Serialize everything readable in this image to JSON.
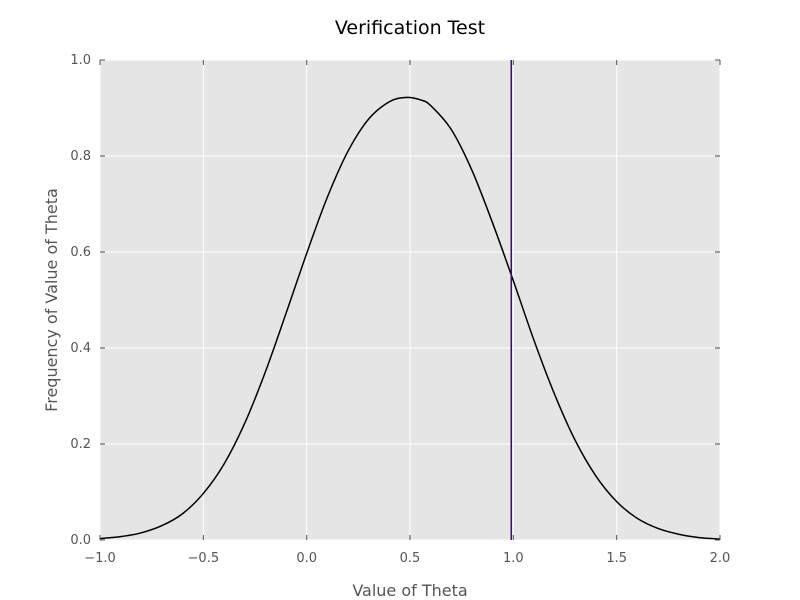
{
  "chart_data": {
    "type": "line",
    "title": "Verification Test",
    "xlabel": "Value of Theta",
    "ylabel": "Frequency of Value of Theta",
    "xlim": [
      -1.0,
      2.0
    ],
    "ylim": [
      0.0,
      1.0
    ],
    "xticks": [
      -1.0,
      -0.5,
      0.0,
      0.5,
      1.0,
      1.5,
      2.0
    ],
    "xtick_labels": [
      "−1.0",
      "−0.5",
      "0.0",
      "0.5",
      "1.0",
      "1.5",
      "2.0"
    ],
    "yticks": [
      0.0,
      0.2,
      0.4,
      0.6,
      0.8,
      1.0
    ],
    "ytick_labels": [
      "0.0",
      "0.2",
      "0.4",
      "0.6",
      "0.8",
      "1.0"
    ],
    "grid": true,
    "series": [
      {
        "style": "curve",
        "color": "#000000",
        "x": [
          -1.0,
          -0.9,
          -0.8,
          -0.7,
          -0.6,
          -0.5,
          -0.4,
          -0.3,
          -0.2,
          -0.1,
          0.0,
          0.1,
          0.2,
          0.3,
          0.4,
          0.48,
          0.55,
          0.6,
          0.7,
          0.8,
          0.9,
          1.0,
          1.1,
          1.2,
          1.3,
          1.4,
          1.5,
          1.6,
          1.7,
          1.8,
          1.9,
          2.0
        ],
        "y": [
          0.003,
          0.007,
          0.015,
          0.03,
          0.055,
          0.097,
          0.158,
          0.243,
          0.35,
          0.472,
          0.597,
          0.714,
          0.81,
          0.877,
          0.913,
          0.922,
          0.917,
          0.905,
          0.855,
          0.77,
          0.66,
          0.54,
          0.416,
          0.303,
          0.207,
          0.133,
          0.08,
          0.045,
          0.024,
          0.012,
          0.005,
          0.002
        ]
      }
    ],
    "vlines": [
      {
        "x": 0.99,
        "color": "#4b0082"
      }
    ],
    "colors": {
      "plot_background": "#e5e5e5",
      "grid": "#ffffff",
      "curve": "#000000",
      "vline": "#4b0082"
    }
  }
}
